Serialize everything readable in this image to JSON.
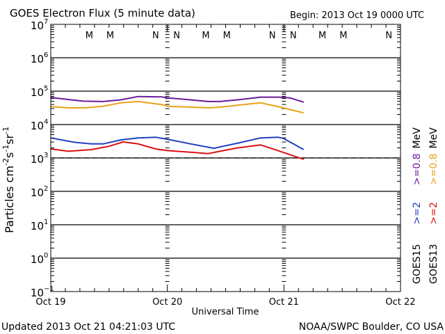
{
  "chart_data": {
    "type": "line",
    "title": "GOES Electron Flux (5 minute data)",
    "begin_label": "Begin: 2013 Oct 19 0000 UTC",
    "xlabel": "Universal Time",
    "ylabel": "Particles cm⁻²s⁻¹sr⁻¹",
    "ylabel_parts": [
      "Particles cm",
      "-2",
      "s",
      "-1",
      "sr",
      "-1"
    ],
    "yscale": "log",
    "ylim_exp": [
      -1,
      7
    ],
    "ytick_exponents": [
      7,
      6,
      5,
      4,
      3,
      2,
      1,
      0,
      -1
    ],
    "xlim_days": [
      0,
      3
    ],
    "x_ticks": [
      {
        "day": 0,
        "label": "Oct 19"
      },
      {
        "day": 1,
        "label": "Oct 20"
      },
      {
        "day": 2,
        "label": "Oct 21"
      },
      {
        "day": 3,
        "label": "Oct 22"
      }
    ],
    "threshold": {
      "value": 1000,
      "style": "dashed"
    },
    "mn_markers": [
      {
        "day": 0.33,
        "label": "M",
        "color": "#cc2222"
      },
      {
        "day": 0.51,
        "label": "M",
        "color": "#2233aa"
      },
      {
        "day": 0.9,
        "label": "N",
        "color": "#cc2222"
      },
      {
        "day": 1.08,
        "label": "N",
        "color": "#2233aa"
      },
      {
        "day": 1.33,
        "label": "M",
        "color": "#cc2222"
      },
      {
        "day": 1.51,
        "label": "M",
        "color": "#2233aa"
      },
      {
        "day": 1.9,
        "label": "N",
        "color": "#cc2222"
      },
      {
        "day": 2.08,
        "label": "N",
        "color": "#2233aa"
      },
      {
        "day": 2.33,
        "label": "M",
        "color": "#cc2222"
      },
      {
        "day": 2.51,
        "label": "M",
        "color": "#2233aa"
      },
      {
        "day": 2.9,
        "label": "N",
        "color": "#cc2222"
      },
      {
        "day": 3.08,
        "label": "N",
        "color": "#2233aa"
      }
    ],
    "series": [
      {
        "name": "GOES15 >=0.8 MeV",
        "color": "#6a1b9a",
        "days": [
          0.0,
          0.15,
          0.28,
          0.45,
          0.6,
          0.75,
          0.95,
          1.0,
          1.2,
          1.35,
          1.45,
          1.6,
          1.8,
          1.95,
          2.05,
          2.17
        ],
        "log10": [
          4.81,
          4.75,
          4.7,
          4.69,
          4.74,
          4.84,
          4.83,
          4.8,
          4.74,
          4.69,
          4.69,
          4.74,
          4.82,
          4.82,
          4.8,
          4.67
        ]
      },
      {
        "name": "GOES13 >=0.8 MeV",
        "color": "#e8a317",
        "days": [
          0.0,
          0.15,
          0.3,
          0.45,
          0.6,
          0.75,
          0.95,
          1.0,
          1.2,
          1.35,
          1.45,
          1.6,
          1.8,
          1.95,
          2.05,
          2.17
        ],
        "log10": [
          4.54,
          4.5,
          4.5,
          4.55,
          4.65,
          4.69,
          4.6,
          4.55,
          4.52,
          4.5,
          4.52,
          4.58,
          4.65,
          4.54,
          4.45,
          4.35
        ]
      },
      {
        "name": "GOES15 >=2 MeV",
        "color": "#1f3fbf",
        "days": [
          0.0,
          0.2,
          0.35,
          0.45,
          0.6,
          0.75,
          0.9,
          1.0,
          1.2,
          1.4,
          1.45,
          1.6,
          1.8,
          1.95,
          2.0,
          2.17
        ],
        "log10": [
          3.6,
          3.47,
          3.42,
          3.42,
          3.54,
          3.6,
          3.62,
          3.56,
          3.42,
          3.29,
          3.33,
          3.44,
          3.6,
          3.62,
          3.58,
          3.25
        ]
      },
      {
        "name": "GOES13 >=2 MeV",
        "color": "#dd1111",
        "days": [
          0.0,
          0.15,
          0.35,
          0.5,
          0.62,
          0.75,
          0.9,
          1.0,
          1.2,
          1.35,
          1.45,
          1.6,
          1.8,
          1.95,
          2.05,
          2.17
        ],
        "log10": [
          3.27,
          3.2,
          3.25,
          3.35,
          3.48,
          3.42,
          3.27,
          3.22,
          3.17,
          3.13,
          3.2,
          3.3,
          3.39,
          3.22,
          3.1,
          2.96
        ]
      }
    ],
    "legend": {
      "placement": "right",
      "columns": [
        {
          "satellite": "GOES15",
          "items": [
            {
              "text": ">=2",
              "color": "#1f3fbf"
            },
            {
              "text": ">=0.8",
              "color": "#6a1b9a"
            },
            {
              "text": "MeV",
              "color": "#000000"
            }
          ]
        },
        {
          "satellite": "GOES13",
          "items": [
            {
              "text": ">=2",
              "color": "#dd1111"
            },
            {
              "text": ">=0.8",
              "color": "#e8a317"
            },
            {
              "text": "MeV",
              "color": "#000000"
            }
          ]
        }
      ]
    },
    "grid": "decade lines"
  },
  "footer": {
    "updated": "Updated 2013 Oct 21 04:21:03 UTC",
    "source": "NOAA/SWPC Boulder, CO USA"
  }
}
